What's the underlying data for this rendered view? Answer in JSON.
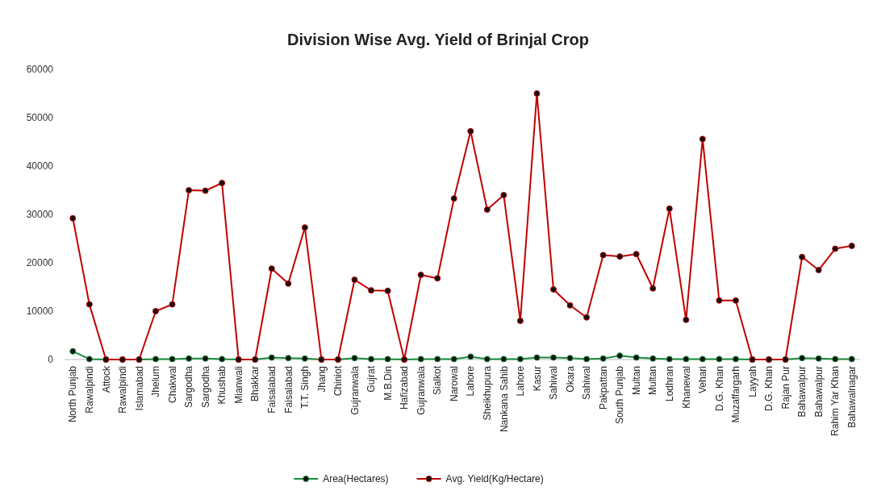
{
  "chart_data": {
    "type": "line",
    "title": "Division Wise Avg. Yield of Brinjal Crop",
    "categories": [
      "North Punjab",
      "Rawalpindi",
      "Attock",
      "Rawalpindi",
      "Islamabad",
      "Jhelum",
      "Chakwal",
      "Sargodha",
      "Sargodha",
      "Khushab",
      "Mianwali",
      "Bhakkar",
      "Faisalabad",
      "Faisalabad",
      "T.T. Singh",
      "Jhang",
      "Chiniot",
      "Gujranwala",
      "Gujrat",
      "M.B.Din",
      "Hafizabad",
      "Gujranwala",
      "Sialkot",
      "Narowal",
      "Lahore",
      "Sheikhupura",
      "Nankana Sahib",
      "Lahore",
      "Kasur",
      "Sahiwal",
      "Okara",
      "Sahiwal",
      "Pakpattan",
      "South Punjab",
      "Multan",
      "Multan",
      "Lodhran",
      "Khanewal",
      "Vehari",
      "D.G. Khan",
      "Muzaffargarh",
      "Layyah",
      "D.G. Khan",
      "Rajan Pur",
      "Bahawalpur",
      "Bahawalpur",
      "Rahim Yar Khan",
      "Bahawalnagar"
    ],
    "series": [
      {
        "name": "Area(Hectares)",
        "color": "#1a8c3c",
        "values": [
          1700,
          100,
          0,
          0,
          0,
          100,
          100,
          200,
          200,
          100,
          0,
          0,
          400,
          300,
          200,
          0,
          0,
          300,
          100,
          100,
          0,
          100,
          100,
          100,
          600,
          100,
          100,
          100,
          400,
          400,
          300,
          100,
          200,
          800,
          400,
          200,
          100,
          100,
          100,
          100,
          100,
          0,
          0,
          0,
          300,
          200,
          100,
          100
        ]
      },
      {
        "name": "Avg. Yield(Kg/Hectare)",
        "color": "#c00000",
        "values": [
          29200,
          11400,
          0,
          0,
          0,
          10000,
          11400,
          35000,
          34900,
          36500,
          0,
          0,
          18800,
          15700,
          27300,
          0,
          0,
          16500,
          14300,
          14200,
          0,
          17500,
          16800,
          33300,
          47200,
          31000,
          34000,
          8000,
          55000,
          14500,
          11200,
          8700,
          21600,
          21300,
          21800,
          14700,
          31200,
          8200,
          45600,
          12200,
          12200,
          0,
          0,
          0,
          21200,
          18500,
          22900,
          23500
        ]
      }
    ],
    "ylim": [
      0,
      60000
    ],
    "yticks": [
      0,
      10000,
      20000,
      30000,
      40000,
      50000,
      60000
    ],
    "legend": "bottom",
    "marker": "circle",
    "line_style": "solid"
  }
}
